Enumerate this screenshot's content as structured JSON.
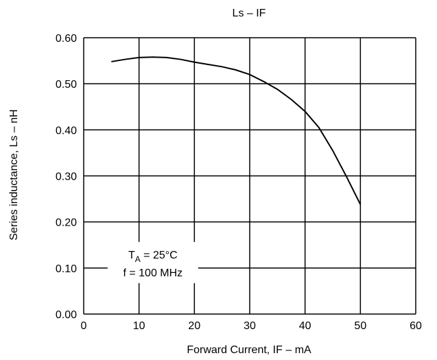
{
  "chart_data": {
    "type": "line",
    "title": "Ls – IF",
    "xlabel": "Forward Current, IF – mA",
    "ylabel": "Series inductance, Ls – nH",
    "xlim": [
      0,
      60
    ],
    "ylim": [
      0.0,
      0.6
    ],
    "x_ticks": [
      0,
      10,
      20,
      30,
      40,
      50,
      60
    ],
    "y_ticks": [
      0.0,
      0.1,
      0.2,
      0.3,
      0.4,
      0.5,
      0.6
    ],
    "x_tick_labels": [
      "0",
      "10",
      "20",
      "30",
      "40",
      "50",
      "60"
    ],
    "y_tick_labels": [
      "0.00",
      "0.10",
      "0.20",
      "0.30",
      "0.40",
      "0.50",
      "0.60"
    ],
    "grid": true,
    "series": [
      {
        "x": [
          5,
          7.5,
          10,
          12.5,
          15,
          17.5,
          20,
          22.5,
          25,
          27.5,
          30,
          32.5,
          35,
          37.5,
          40,
          42.5,
          45,
          47.5,
          50
        ],
        "y": [
          0.548,
          0.553,
          0.557,
          0.558,
          0.557,
          0.553,
          0.547,
          0.542,
          0.537,
          0.53,
          0.52,
          0.505,
          0.488,
          0.466,
          0.44,
          0.405,
          0.355,
          0.298,
          0.238
        ]
      }
    ],
    "annotation": {
      "ta_main": "T",
      "ta_sub": "A",
      "ta_rest": " = 25°C",
      "freq": "f = 100 MHz",
      "x": 12.5,
      "y": 0.1
    }
  }
}
